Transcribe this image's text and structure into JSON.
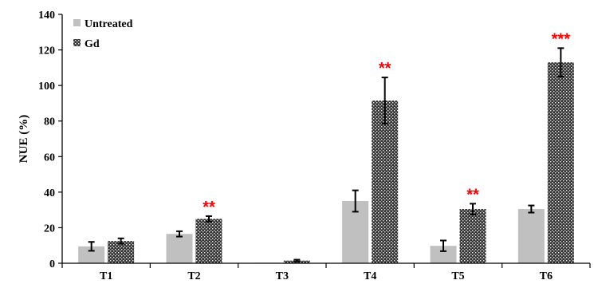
{
  "chart_data": {
    "type": "bar",
    "title": "",
    "xlabel": "",
    "ylabel": "NUE (%)",
    "ylim": [
      0,
      140
    ],
    "yticks": [
      "0",
      "20",
      "40",
      "60",
      "80",
      "100",
      "120",
      "140"
    ],
    "categories": [
      "T1",
      "T2",
      "T3",
      "T4",
      "T5",
      "T6"
    ],
    "series": [
      {
        "name": "Untreated",
        "color": "#c0c0c0",
        "pattern": "solid",
        "values": [
          9.5,
          16.5,
          0.3,
          35,
          9.8,
          30.5
        ],
        "errors": [
          2.5,
          1.5,
          0,
          6,
          3,
          2
        ]
      },
      {
        "name": "Gd",
        "color": "#303030",
        "pattern": "checkered",
        "values": [
          12.5,
          25,
          1.5,
          91.5,
          30.5,
          113
        ],
        "errors": [
          1.5,
          1.5,
          0.5,
          13,
          3,
          8
        ]
      }
    ],
    "significance": [
      "",
      "**",
      "",
      "**",
      "**",
      "***"
    ],
    "significance_color": "#ff0000",
    "legend_position": "top-left",
    "grid": false
  }
}
